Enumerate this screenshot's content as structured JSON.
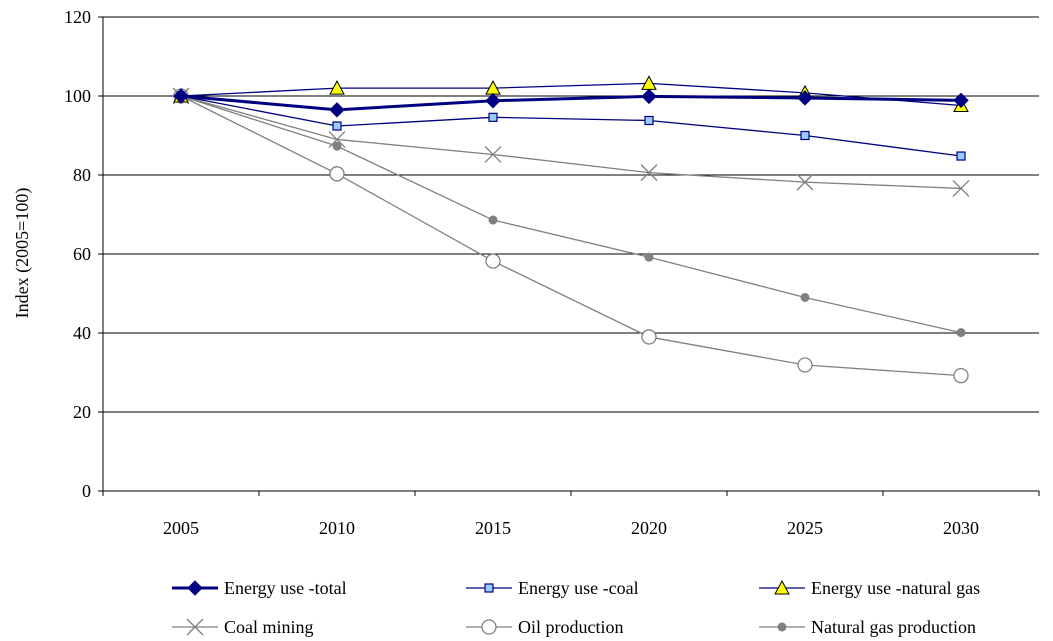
{
  "chart_data": {
    "type": "line",
    "title": "",
    "xlabel": "",
    "ylabel": "Index (2005=100)",
    "x": [
      "2005",
      "2010",
      "2015",
      "2020",
      "2025",
      "2030"
    ],
    "ylim": [
      0,
      120
    ],
    "yticks": [
      0,
      20,
      40,
      60,
      80,
      100,
      120
    ],
    "grid": "horizontal",
    "legend_position": "bottom",
    "series": [
      {
        "name": "Energy use -total",
        "values": [
          100,
          96.5,
          98.8,
          99.9,
          99.5,
          98.9
        ],
        "color": "#000080",
        "marker": "diamond",
        "line_weight": "thick"
      },
      {
        "name": "Energy use -coal",
        "values": [
          100,
          92.4,
          94.6,
          93.8,
          90.0,
          84.8
        ],
        "color": "#000080",
        "marker": "square",
        "marker_fill": "#99ccff",
        "line_weight": "thin"
      },
      {
        "name": "Energy use -natural gas",
        "values": [
          100,
          102.0,
          102.0,
          103.2,
          100.8,
          97.6
        ],
        "color": "#000080",
        "marker": "triangle",
        "marker_fill": "#ffff00",
        "line_weight": "thin"
      },
      {
        "name": "Coal mining",
        "values": [
          100,
          89.0,
          85.2,
          80.6,
          78.2,
          76.6
        ],
        "color": "#808080",
        "marker": "x",
        "line_weight": "thin"
      },
      {
        "name": "Oil production",
        "values": [
          100,
          80.3,
          58.2,
          39.0,
          31.9,
          29.2
        ],
        "color": "#808080",
        "marker": "circle-open",
        "line_weight": "thin"
      },
      {
        "name": "Natural gas production",
        "values": [
          100,
          87.3,
          68.6,
          59.2,
          49.0,
          40.1
        ],
        "color": "#808080",
        "marker": "dot",
        "line_weight": "thin"
      }
    ]
  }
}
